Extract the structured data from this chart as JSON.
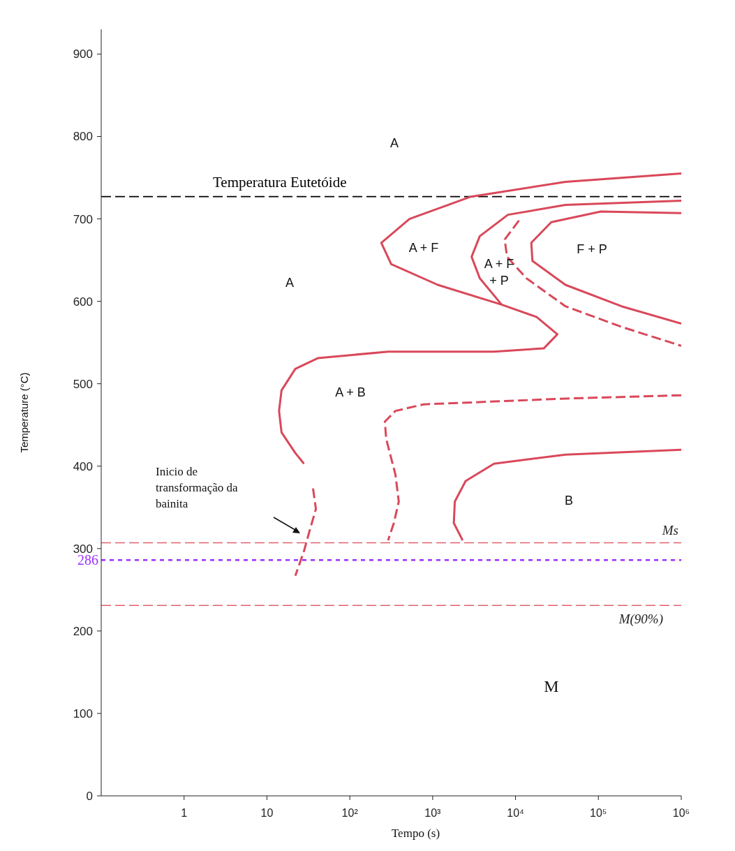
{
  "chart_data": {
    "type": "line",
    "xlabel": "Tempo (s)",
    "ylabel": "Temperature (°C)",
    "log": "x",
    "marker": "none",
    "xlim": [
      0.1,
      1000000
    ],
    "xticks": [
      1,
      10,
      {
        "value": 100,
        "label": "10²"
      },
      {
        "value": 1000,
        "label": "10³"
      },
      {
        "value": 10000,
        "label": "10⁴"
      },
      {
        "value": 100000,
        "label": "10⁵"
      },
      {
        "value": 1000000,
        "label": "10⁶"
      }
    ],
    "ylim": [
      0,
      930
    ],
    "yticks": [
      0,
      100,
      200,
      300,
      400,
      500,
      600,
      700,
      800,
      900
    ],
    "series": [
      {
        "color": "#d9485a",
        "line_style": "solid",
        "x": [
          1000000,
          40000,
          2900,
          525,
          240,
          316,
          1150,
          6800,
          18000,
          32000,
          22000,
          5500,
          290,
          41,
          22,
          15,
          14,
          15,
          22,
          28
        ],
        "values": [
          755,
          745,
          727,
          700,
          671,
          645,
          620,
          596,
          581,
          560,
          543,
          539,
          539,
          531,
          518,
          492,
          467,
          441,
          416,
          403
        ]
      },
      {
        "color": "#d9485a",
        "line_style": "dashed",
        "x": [
          36,
          39,
          33,
          28,
          22
        ],
        "values": [
          373,
          348,
          323,
          297,
          267
        ]
      },
      {
        "color": "#d9485a",
        "line_style": "solid",
        "x": [
          1000000,
          40000,
          8100,
          3700,
          2950,
          3700,
          6800
        ],
        "values": [
          722,
          717,
          705,
          679,
          654,
          628,
          596
        ]
      },
      {
        "color": "#d9485a",
        "line_style": "dashed",
        "x": [
          11000,
          7400,
          7900,
          13500,
          40000,
          190000,
          1000000
        ],
        "values": [
          698,
          675,
          654,
          628,
          594,
          569,
          546
        ]
      },
      {
        "color": "#d9485a",
        "line_style": "solid",
        "x": [
          1000000,
          107000,
          27000,
          15500,
          16000,
          40000,
          190000,
          1000000
        ],
        "values": [
          707,
          709,
          696,
          671,
          649,
          620,
          594,
          573
        ]
      },
      {
        "color": "#d9485a",
        "line_style": "dashed",
        "x": [
          1000000,
          40000,
          780,
          355,
          265,
          275,
          355,
          390,
          340,
          290
        ],
        "values": [
          486,
          482,
          475,
          467,
          454,
          433,
          390,
          357,
          331,
          310
        ]
      },
      {
        "color": "#d9485a",
        "line_style": "solid",
        "x": [
          1000000,
          40000,
          5500,
          2500,
          1850,
          1800,
          2300
        ],
        "values": [
          420,
          414,
          403,
          382,
          357,
          331,
          310
        ]
      }
    ],
    "ref_lines": [
      {
        "axis": "y",
        "value": 727,
        "label": "Temperatura Eutetóide",
        "color": "#000000",
        "line_style": "dashed"
      },
      {
        "axis": "y",
        "value": 307,
        "label": "Ms",
        "color": "#e06070",
        "line_style": "dashed"
      },
      {
        "axis": "y",
        "value": 286,
        "label": "286",
        "color": "#9b30ff",
        "line_style": "dotted"
      },
      {
        "axis": "y",
        "value": 231,
        "label": "M(90%)",
        "color": "#e06070",
        "line_style": "dashed"
      }
    ],
    "annotations": [
      "A",
      "A",
      "A + F",
      "A + F\n+ P",
      "F + P",
      "A + B",
      "B",
      "M",
      "Inicio de transformação da bainita"
    ]
  }
}
